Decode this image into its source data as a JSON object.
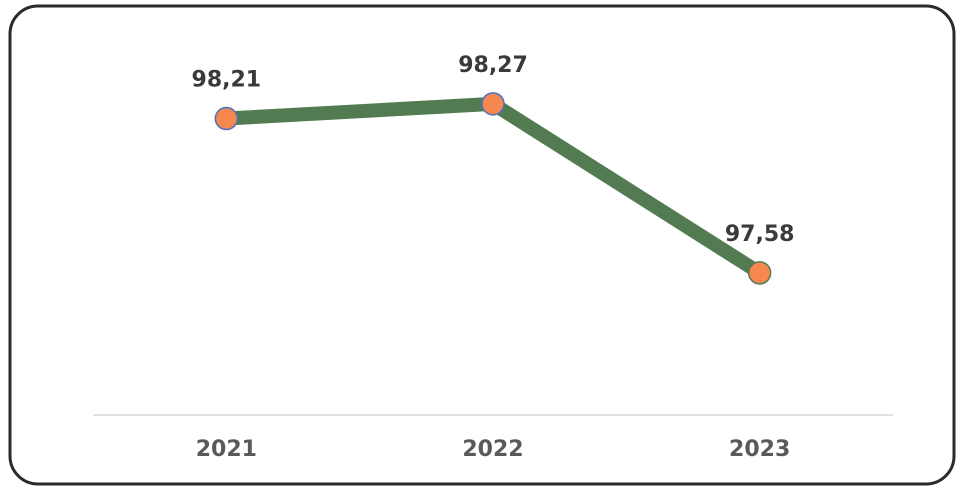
{
  "chart_data": {
    "type": "line",
    "categories": [
      "2021",
      "2022",
      "2023"
    ],
    "values": [
      98.21,
      98.27,
      97.58
    ],
    "value_labels": [
      "98,21",
      "98,27",
      "97,58"
    ],
    "color": "#527b52",
    "marker_color": "#f5874f",
    "marker_edges": [
      "#4a72c0",
      "#4a72c0",
      "#527b52"
    ],
    "ylim": [
      97.0,
      98.6
    ]
  }
}
